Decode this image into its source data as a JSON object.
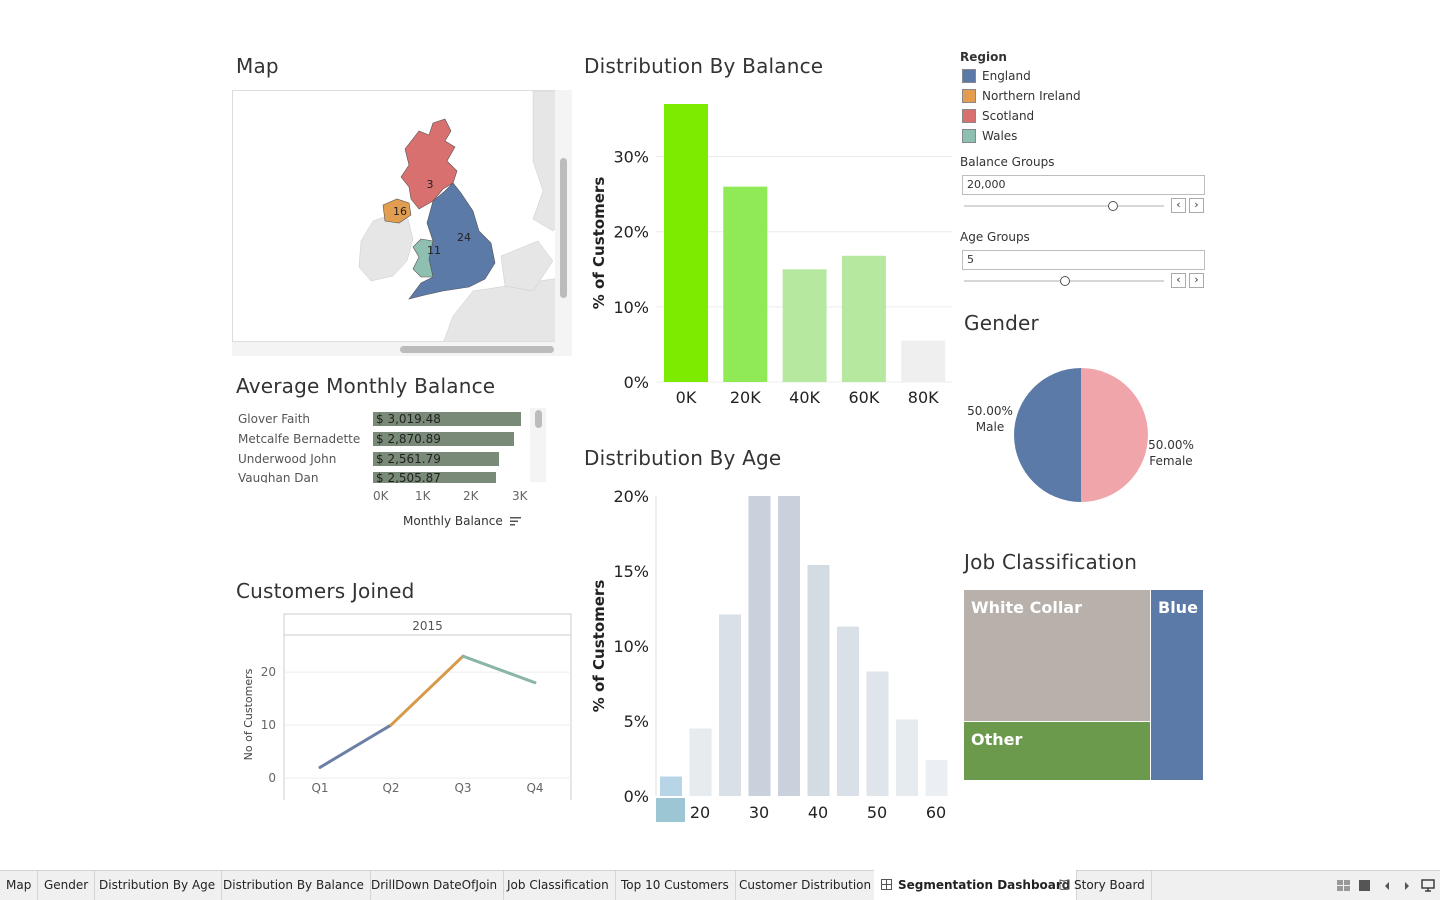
{
  "titles": {
    "map": "Map",
    "avg_monthly_balance": "Average Monthly Balance",
    "customers_joined": "Customers Joined",
    "dist_balance": "Distribution By Balance",
    "dist_age": "Distribution By Age",
    "gender": "Gender",
    "job": "Job Classification"
  },
  "map": {
    "labels": [
      {
        "region": "Scotland",
        "text": "3"
      },
      {
        "region": "Northern Ireland",
        "text": "16"
      },
      {
        "region": "England",
        "text": "24"
      },
      {
        "region": "Wales",
        "text": "11"
      }
    ]
  },
  "region_legend": {
    "title": "Region",
    "items": [
      {
        "label": "England",
        "color": "#5b7aa8"
      },
      {
        "label": "Northern Ireland",
        "color": "#e39d50"
      },
      {
        "label": "Scotland",
        "color": "#d97070"
      },
      {
        "label": "Wales",
        "color": "#8ebfb0"
      }
    ]
  },
  "filters": {
    "balance_groups": {
      "label": "Balance Groups",
      "value": "20,000"
    },
    "age_groups": {
      "label": "Age Groups",
      "value": "5"
    }
  },
  "avg_balance": {
    "rows": [
      {
        "name": "Glover Faith",
        "value": "$ 3,019.48"
      },
      {
        "name": "Metcalfe Bernadette",
        "value": "$ 2,870.89"
      },
      {
        "name": "Underwood John",
        "value": "$ 2,561.79"
      },
      {
        "name": "Vaughan Dan",
        "value": "$ 2,505.87"
      }
    ],
    "ticks": [
      "0K",
      "1K",
      "2K",
      "3K"
    ],
    "xlabel": "Monthly Balance"
  },
  "tabs": [
    "Map",
    "Gender",
    "Distribution By Age",
    "Distribution By Balance",
    "DrillDown DateOfJoin",
    "Job Classification",
    "Top 10 Customers",
    "Customer Distribution",
    "Segmentation Dashboard",
    "Story Board"
  ],
  "chart_data": [
    {
      "id": "avg_monthly_balance",
      "type": "bar",
      "title": "Average Monthly Balance",
      "categories": [
        "Glover Faith",
        "Metcalfe Bernadette",
        "Underwood John",
        "Vaughan Dan"
      ],
      "values": [
        3019.48,
        2870.89,
        2561.79,
        2505.87
      ],
      "xlabel": "Monthly Balance",
      "xlim": [
        0,
        3500
      ],
      "xticks": [
        "0K",
        "1K",
        "2K",
        "3K"
      ]
    },
    {
      "id": "customers_joined",
      "type": "line",
      "title": "Customers Joined",
      "header": "2015",
      "categories": [
        "Q1",
        "Q2",
        "Q3",
        "Q4"
      ],
      "values": [
        2,
        10,
        23,
        18
      ],
      "ylabel": "No of Customers",
      "ylim": [
        0,
        27
      ],
      "yticks": [
        0,
        10,
        20
      ]
    },
    {
      "id": "dist_balance",
      "type": "bar",
      "title": "Distribution By Balance",
      "categories": [
        "0K",
        "20K",
        "40K",
        "60K",
        "80K"
      ],
      "values": [
        37,
        26,
        15,
        16.8,
        5.5
      ],
      "colors": [
        "#7ceb00",
        "#90ea55",
        "#b7e8a0",
        "#b7e8a0",
        "#efefef"
      ],
      "ylabel": "% of Customers",
      "ylim": [
        0,
        37
      ],
      "yticks": [
        "0%",
        "10%",
        "20%",
        "30%"
      ]
    },
    {
      "id": "dist_age",
      "type": "bar",
      "title": "Distribution By Age",
      "categories": [
        "15",
        "20",
        "25",
        "30",
        "35",
        "40",
        "45",
        "50",
        "55",
        "60"
      ],
      "values": [
        1.3,
        4.5,
        12.1,
        20,
        20,
        15.4,
        11.3,
        8.3,
        5.1,
        2.4
      ],
      "xticks": [
        "20",
        "30",
        "40",
        "50",
        "60"
      ],
      "ylabel": "% of Customers",
      "ylim": [
        0,
        20
      ],
      "yticks": [
        "0%",
        "5%",
        "10%",
        "15%",
        "20%"
      ]
    },
    {
      "id": "gender",
      "type": "pie",
      "title": "Gender",
      "slices": [
        {
          "label": "Male",
          "value": 50.0,
          "text": "50.00%",
          "color": "#5b7aa8"
        },
        {
          "label": "Female",
          "value": 50.0,
          "text": "50.00%",
          "color": "#f0a5ab"
        }
      ]
    },
    {
      "id": "job_classification",
      "type": "treemap",
      "title": "Job Classification",
      "items": [
        {
          "label": "White Collar",
          "color": "#b8b0aa"
        },
        {
          "label": "Other",
          "color": "#6c9a4c"
        },
        {
          "label": "Blue",
          "color": "#5b7aa8"
        }
      ]
    }
  ]
}
